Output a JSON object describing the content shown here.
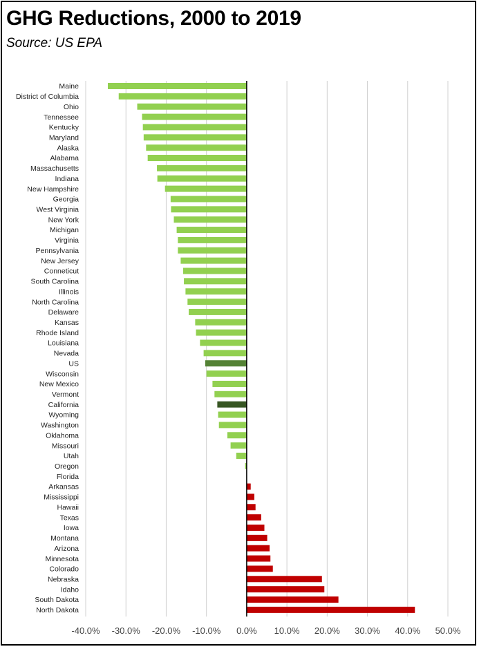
{
  "title": "GHG Reductions, 2000 to 2019",
  "subtitle": "Source:  US EPA",
  "colors": {
    "decrease": "#92d050",
    "increase": "#c00000",
    "us": "#548235",
    "california": "#375623",
    "gridline": "#d0d0d0",
    "zero_axis": "#000000"
  },
  "chart_data": {
    "type": "bar",
    "orientation": "horizontal",
    "xlim": [
      -40,
      50
    ],
    "tick_values": [
      -40,
      -30,
      -20,
      -10,
      0,
      10,
      20,
      30,
      40,
      50
    ],
    "tick_labels": [
      "-40.0%",
      "-30.0%",
      "-20.0%",
      "-10.0%",
      "0.0%",
      "10.0%",
      "20.0%",
      "30.0%",
      "40.0%",
      "50.0%"
    ],
    "grid": true,
    "legend": "none",
    "categories": [
      "Maine",
      "District of Columbia",
      "Ohio",
      "Tennessee",
      "Kentucky",
      "Maryland",
      "Alaska",
      "Alabama",
      "Massachusetts",
      "Indiana",
      "New Hampshire",
      "Georgia",
      "West Virginia",
      "New York",
      "Michigan",
      "Virginia",
      "Pennsylvania",
      "New Jersey",
      "Conneticut",
      "South Carolina",
      "Illinois",
      "North Carolina",
      "Delaware",
      "Kansas",
      "Rhode Island",
      "Louisiana",
      "Nevada",
      "US",
      "Wisconsin",
      "New Mexico",
      "Vermont",
      "California",
      "Wyoming",
      "Washington",
      "Oklahoma",
      "Missouri",
      "Utah",
      "Oregon",
      "Florida",
      "Arkansas",
      "Mississippi",
      "Hawaii",
      "Texas",
      "Iowa",
      "Montana",
      "Arizona",
      "Minnesota",
      "Colorado",
      "Nebraska",
      "Idaho",
      "South Dakota",
      "North Dakota"
    ],
    "values": [
      -34.5,
      -31.8,
      -27.2,
      -26.0,
      -25.8,
      -25.6,
      -25.0,
      -24.6,
      -22.3,
      -22.2,
      -20.3,
      -18.9,
      -18.8,
      -18.1,
      -17.4,
      -17.1,
      -17.1,
      -16.4,
      -15.8,
      -15.6,
      -15.2,
      -14.7,
      -14.4,
      -12.8,
      -12.6,
      -11.6,
      -10.7,
      -10.3,
      -10.0,
      -8.5,
      -8.0,
      -7.3,
      -7.1,
      -6.9,
      -4.8,
      -4.0,
      -2.6,
      -0.4,
      0.0,
      1.0,
      1.9,
      2.2,
      3.6,
      4.4,
      5.1,
      5.7,
      5.9,
      6.5,
      18.7,
      19.3,
      22.8,
      41.8
    ]
  }
}
